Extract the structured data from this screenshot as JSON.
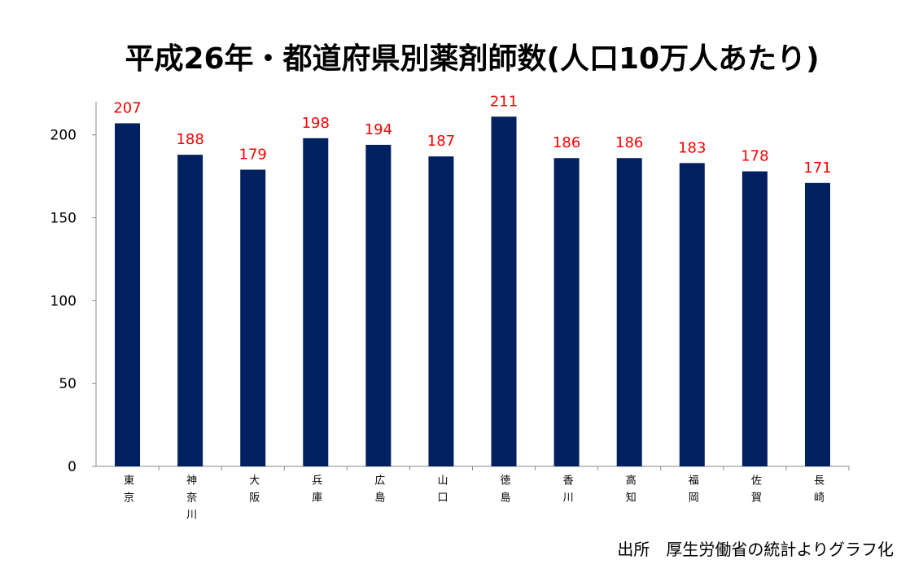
{
  "chart_data": {
    "type": "bar",
    "title": "平成26年・都道府県別薬剤師数(人口10万人あたり)",
    "categories": [
      "東京",
      "神奈川",
      "大阪",
      "兵庫",
      "広島",
      "山口",
      "徳島",
      "香川",
      "高知",
      "福岡",
      "佐賀",
      "長崎"
    ],
    "values": [
      207,
      188,
      179,
      198,
      194,
      187,
      211,
      186,
      186,
      183,
      178,
      171
    ],
    "color": "#002060",
    "label_color": "#ff0000",
    "ylim": [
      0,
      220
    ],
    "yticks": [
      0,
      50,
      100,
      150,
      200
    ],
    "grid": false,
    "source": "出所　厚生労働省の統計よりグラフ化"
  }
}
